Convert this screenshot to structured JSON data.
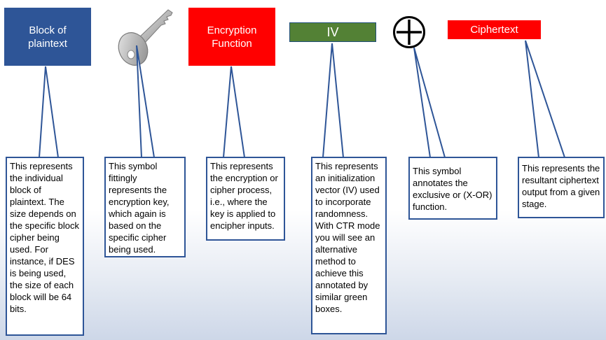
{
  "symbols": {
    "plaintext_block": "Block of plaintext",
    "encryption_function": "Encryption Function",
    "iv": "IV",
    "ciphertext": "Ciphertext",
    "key_icon": "key-icon",
    "xor_icon": "xor-circle-plus-icon"
  },
  "callouts": {
    "plaintext": "This represents the individual block of plaintext. The size depends on the specific block cipher being used. For instance, if DES is being used, the size of each block will be 64 bits.",
    "key": "This symbol fittingly represents the encryption key, which again is based on the specific cipher being used.",
    "encryption": "This represents the encryption or cipher process, i.e., where the key is applied to encipher inputs.",
    "iv": "This represents an initialization vector (IV) used to incorporate randomness. With CTR mode you will see an alternative method to achieve this annotated by similar green boxes.",
    "xor": "This symbol annotates the exclusive or (X-OR) function.",
    "ciphertext": "This represents the resultant ciphertext output from a given stage."
  },
  "colors": {
    "blue_box": "#2e5597",
    "red_box": "#ff0000",
    "green_box": "#538135",
    "callout_border": "#2e5597"
  }
}
